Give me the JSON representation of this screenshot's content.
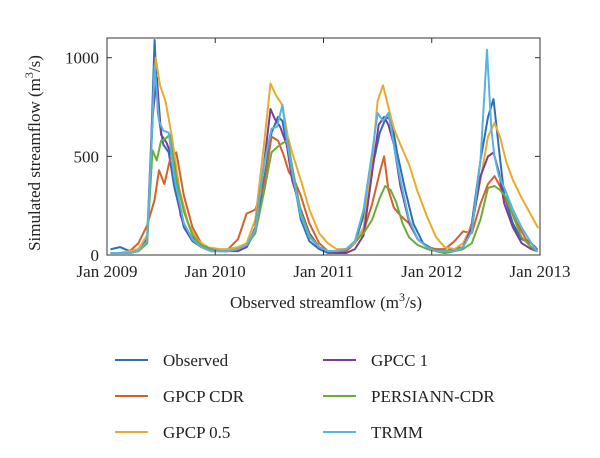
{
  "chart_data": {
    "type": "line",
    "xlabel": "Observed streamflow (m",
    "xlabel_sup": "3",
    "xlabel_tail": "/s)",
    "ylabel": "Simulated streamflow (m",
    "ylabel_sup": "3",
    "ylabel_tail": "/s)",
    "xlim": [
      2009,
      2013
    ],
    "ylim": [
      0,
      1100
    ],
    "x_ticks": [
      {
        "value": 2009,
        "label": "Jan 2009"
      },
      {
        "value": 2010,
        "label": "Jan 2010"
      },
      {
        "value": 2011,
        "label": "Jan 2011"
      },
      {
        "value": 2012,
        "label": "Jan 2012"
      },
      {
        "value": 2013,
        "label": "Jan 2013"
      }
    ],
    "y_ticks": [
      {
        "value": 0,
        "label": "0"
      },
      {
        "value": 500,
        "label": "500"
      },
      {
        "value": 1000,
        "label": "1000"
      }
    ],
    "grid": false,
    "legend_position": "bottom",
    "series": [
      {
        "name": "Observed",
        "color": "#2f6db5",
        "x": [
          2009.04,
          2009.12,
          2009.21,
          2009.29,
          2009.37,
          2009.41,
          2009.44,
          2009.47,
          2009.52,
          2009.57,
          2009.62,
          2009.71,
          2009.79,
          2009.87,
          2009.96,
          2010.04,
          2010.12,
          2010.21,
          2010.29,
          2010.37,
          2010.45,
          2010.52,
          2010.58,
          2010.62,
          2010.66,
          2010.71,
          2010.79,
          2010.87,
          2010.96,
          2011.04,
          2011.12,
          2011.21,
          2011.29,
          2011.37,
          2011.45,
          2011.52,
          2011.58,
          2011.63,
          2011.68,
          2011.75,
          2011.83,
          2011.92,
          2012.04,
          2012.12,
          2012.21,
          2012.29,
          2012.37,
          2012.45,
          2012.52,
          2012.57,
          2012.62,
          2012.67,
          2012.75,
          2012.83,
          2012.92,
          2012.97
        ],
        "y": [
          30,
          40,
          20,
          30,
          80,
          600,
          1090,
          720,
          560,
          520,
          350,
          140,
          70,
          40,
          20,
          20,
          20,
          30,
          40,
          120,
          380,
          620,
          700,
          680,
          560,
          430,
          180,
          70,
          30,
          10,
          10,
          30,
          60,
          200,
          440,
          620,
          700,
          680,
          520,
          340,
          160,
          60,
          20,
          20,
          30,
          40,
          160,
          480,
          700,
          790,
          540,
          300,
          160,
          80,
          60,
          30
        ]
      },
      {
        "name": "GPCP CDR",
        "color": "#d4612a",
        "x": [
          2009.04,
          2009.12,
          2009.21,
          2009.29,
          2009.37,
          2009.44,
          2009.48,
          2009.53,
          2009.58,
          2009.64,
          2009.71,
          2009.79,
          2009.87,
          2009.96,
          2010.04,
          2010.12,
          2010.21,
          2010.29,
          2010.37,
          2010.45,
          2010.52,
          2010.58,
          2010.63,
          2010.68,
          2010.73,
          2010.79,
          2010.87,
          2010.96,
          2011.04,
          2011.12,
          2011.21,
          2011.29,
          2011.37,
          2011.45,
          2011.52,
          2011.56,
          2011.6,
          2011.65,
          2011.71,
          2011.79,
          2011.87,
          2011.96,
          2012.04,
          2012.12,
          2012.21,
          2012.29,
          2012.37,
          2012.45,
          2012.52,
          2012.58,
          2012.63,
          2012.67,
          2012.71,
          2012.79,
          2012.87,
          2012.96
        ],
        "y": [
          10,
          10,
          20,
          60,
          150,
          280,
          430,
          360,
          480,
          520,
          300,
          140,
          60,
          30,
          20,
          30,
          80,
          210,
          230,
          350,
          600,
          580,
          510,
          420,
          380,
          300,
          160,
          60,
          20,
          10,
          20,
          60,
          120,
          260,
          420,
          500,
          330,
          240,
          200,
          160,
          80,
          40,
          30,
          30,
          70,
          120,
          110,
          260,
          360,
          400,
          350,
          300,
          250,
          160,
          80,
          40
        ]
      },
      {
        "name": "GPCP 0.5",
        "color": "#e8ab2e",
        "x": [
          2009.04,
          2009.12,
          2009.21,
          2009.29,
          2009.37,
          2009.42,
          2009.45,
          2009.49,
          2009.54,
          2009.6,
          2009.67,
          2009.75,
          2009.83,
          2009.92,
          2010.04,
          2010.12,
          2010.21,
          2010.29,
          2010.37,
          2010.45,
          2010.51,
          2010.56,
          2010.62,
          2010.67,
          2010.71,
          2010.79,
          2010.87,
          2010.96,
          2011.04,
          2011.12,
          2011.21,
          2011.29,
          2011.37,
          2011.45,
          2011.5,
          2011.55,
          2011.6,
          2011.65,
          2011.71,
          2011.79,
          2011.87,
          2011.96,
          2012.04,
          2012.12,
          2012.21,
          2012.29,
          2012.37,
          2012.45,
          2012.52,
          2012.58,
          2012.63,
          2012.69,
          2012.75,
          2012.83,
          2012.92,
          2012.98
        ],
        "y": [
          10,
          10,
          20,
          30,
          100,
          660,
          1000,
          860,
          780,
          600,
          330,
          160,
          80,
          40,
          30,
          30,
          40,
          60,
          180,
          560,
          870,
          810,
          760,
          600,
          520,
          380,
          230,
          110,
          60,
          30,
          30,
          60,
          140,
          480,
          780,
          860,
          750,
          640,
          560,
          460,
          320,
          190,
          90,
          40,
          30,
          60,
          150,
          380,
          600,
          670,
          600,
          470,
          380,
          290,
          200,
          140
        ]
      },
      {
        "name": "GPCC 1",
        "color": "#7a3d94",
        "x": [
          2009.04,
          2009.12,
          2009.21,
          2009.29,
          2009.37,
          2009.42,
          2009.46,
          2009.5,
          2009.55,
          2009.62,
          2009.68,
          2009.75,
          2009.83,
          2009.92,
          2010.04,
          2010.12,
          2010.21,
          2010.29,
          2010.37,
          2010.45,
          2010.51,
          2010.55,
          2010.6,
          2010.66,
          2010.71,
          2010.79,
          2010.87,
          2010.96,
          2011.04,
          2011.12,
          2011.21,
          2011.29,
          2011.37,
          2011.45,
          2011.51,
          2011.56,
          2011.6,
          2011.65,
          2011.71,
          2011.79,
          2011.87,
          2011.96,
          2012.04,
          2012.12,
          2012.21,
          2012.29,
          2012.37,
          2012.45,
          2012.52,
          2012.57,
          2012.62,
          2012.67,
          2012.75,
          2012.83,
          2012.92,
          2012.97
        ],
        "y": [
          10,
          10,
          10,
          20,
          60,
          700,
          900,
          610,
          570,
          470,
          200,
          110,
          60,
          30,
          20,
          20,
          20,
          40,
          140,
          460,
          740,
          690,
          650,
          560,
          380,
          230,
          110,
          40,
          20,
          10,
          10,
          30,
          100,
          420,
          660,
          700,
          660,
          560,
          350,
          170,
          80,
          40,
          20,
          10,
          20,
          40,
          140,
          400,
          500,
          520,
          420,
          260,
          140,
          60,
          30,
          20
        ]
      },
      {
        "name": "PERSIANN-CDR",
        "color": "#6aac3b",
        "x": [
          2009.04,
          2009.12,
          2009.21,
          2009.29,
          2009.37,
          2009.42,
          2009.46,
          2009.5,
          2009.54,
          2009.58,
          2009.63,
          2009.71,
          2009.79,
          2009.87,
          2009.96,
          2010.04,
          2010.12,
          2010.21,
          2010.29,
          2010.37,
          2010.45,
          2010.52,
          2010.58,
          2010.63,
          2010.67,
          2010.71,
          2010.79,
          2010.87,
          2010.96,
          2011.04,
          2011.12,
          2011.21,
          2011.29,
          2011.37,
          2011.45,
          2011.52,
          2011.57,
          2011.62,
          2011.67,
          2011.73,
          2011.79,
          2011.87,
          2011.96,
          2012.04,
          2012.12,
          2012.21,
          2012.29,
          2012.37,
          2012.45,
          2012.52,
          2012.58,
          2012.63,
          2012.69,
          2012.75,
          2012.83,
          2012.92,
          2012.97
        ],
        "y": [
          10,
          10,
          10,
          20,
          60,
          530,
          480,
          580,
          590,
          610,
          420,
          220,
          100,
          50,
          30,
          20,
          20,
          30,
          50,
          110,
          320,
          520,
          550,
          570,
          580,
          450,
          220,
          100,
          40,
          20,
          20,
          30,
          70,
          110,
          180,
          290,
          350,
          330,
          270,
          160,
          90,
          50,
          30,
          20,
          10,
          20,
          30,
          60,
          180,
          340,
          350,
          330,
          290,
          200,
          90,
          40,
          20
        ]
      },
      {
        "name": "TRMM",
        "color": "#56b3e2",
        "x": [
          2009.04,
          2009.12,
          2009.21,
          2009.29,
          2009.37,
          2009.41,
          2009.44,
          2009.48,
          2009.52,
          2009.57,
          2009.62,
          2009.71,
          2009.79,
          2009.87,
          2009.96,
          2010.04,
          2010.12,
          2010.21,
          2010.29,
          2010.37,
          2010.45,
          2010.52,
          2010.57,
          2010.62,
          2010.66,
          2010.71,
          2010.79,
          2010.87,
          2010.96,
          2011.04,
          2011.12,
          2011.21,
          2011.29,
          2011.37,
          2011.45,
          2011.5,
          2011.55,
          2011.6,
          2011.65,
          2011.71,
          2011.79,
          2011.87,
          2011.96,
          2012.04,
          2012.12,
          2012.21,
          2012.29,
          2012.37,
          2012.45,
          2012.51,
          2012.55,
          2012.58,
          2012.62,
          2012.67,
          2012.75,
          2012.83,
          2012.92,
          2012.97
        ],
        "y": [
          10,
          10,
          10,
          20,
          70,
          550,
          960,
          680,
          630,
          620,
          400,
          160,
          80,
          40,
          20,
          20,
          20,
          30,
          50,
          130,
          460,
          640,
          650,
          760,
          590,
          420,
          200,
          90,
          40,
          20,
          20,
          30,
          70,
          230,
          520,
          720,
          680,
          720,
          560,
          380,
          180,
          80,
          40,
          20,
          20,
          20,
          40,
          120,
          480,
          1040,
          640,
          500,
          400,
          340,
          230,
          140,
          60,
          20
        ]
      }
    ]
  }
}
